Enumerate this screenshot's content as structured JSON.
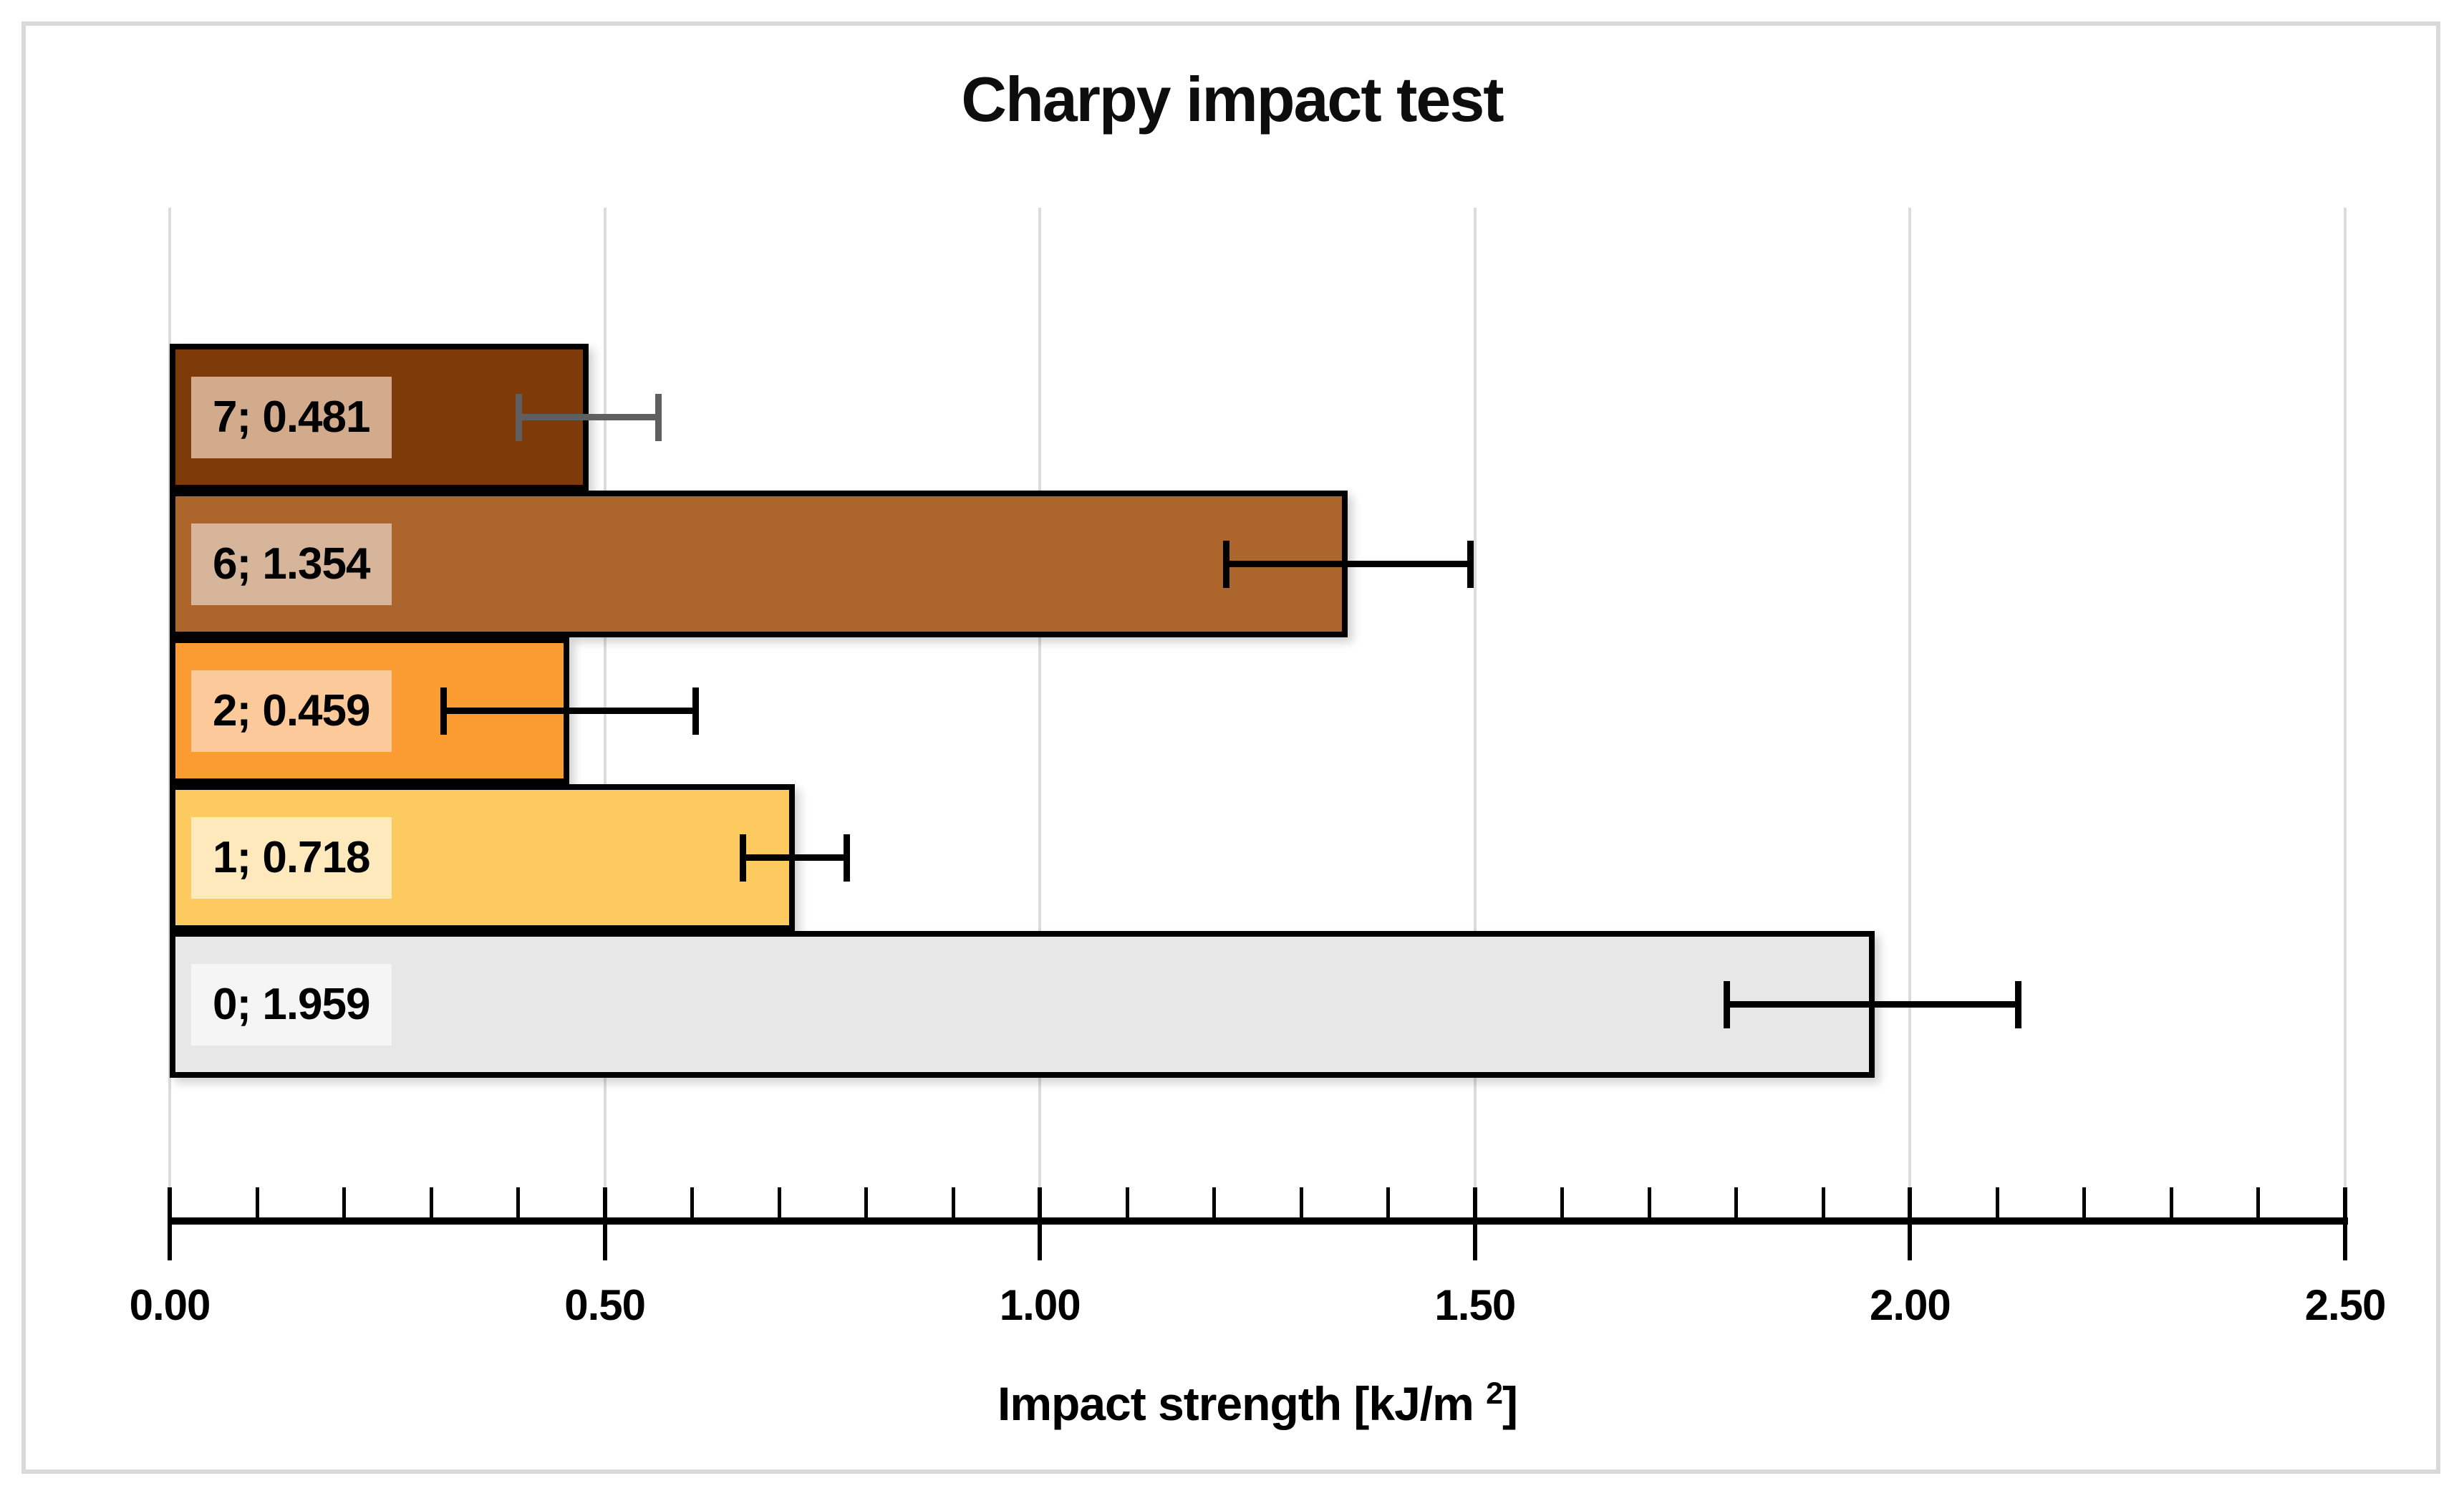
{
  "title": "Charpy impact test",
  "chart_data": {
    "type": "bar",
    "orientation": "horizontal",
    "title": "Charpy impact test",
    "xlabel": "Impact strength [kJ/m ²]",
    "xlabel_parts": {
      "prefix": "Impact strength [kJ/m ",
      "sup": "2",
      "suffix": "]"
    },
    "xlim": [
      0,
      2.5
    ],
    "x_major_ticks": [
      0.0,
      0.5,
      1.0,
      1.5,
      2.0,
      2.5
    ],
    "x_tick_labels": [
      "0.00",
      "0.50",
      "1.00",
      "1.50",
      "2.00",
      "2.50"
    ],
    "x_minor_tick_step": 0.1,
    "grid": "vertical-major-only",
    "legend": "none",
    "categories_top_to_bottom": [
      "7",
      "6",
      "2",
      "1",
      "0"
    ],
    "bars": [
      {
        "category": "7",
        "value": 0.481,
        "label": "7; 0.481",
        "error_minus": 0.08,
        "error_plus": 0.08,
        "fill": "#7E3A08",
        "label_bg": "#D2AA8C",
        "error_color": "#5F5F5F"
      },
      {
        "category": "6",
        "value": 1.354,
        "label": "6; 1.354",
        "error_minus": 0.14,
        "error_plus": 0.14,
        "fill": "#AC662B",
        "label_bg": "#D6B59B",
        "error_color": "#000000"
      },
      {
        "category": "2",
        "value": 0.459,
        "label": "2; 0.459",
        "error_minus": 0.145,
        "error_plus": 0.145,
        "fill": "#FB9C33",
        "label_bg": "#FCCA9A",
        "error_color": "#000000"
      },
      {
        "category": "1",
        "value": 0.718,
        "label": "1; 0.718",
        "error_minus": 0.06,
        "error_plus": 0.06,
        "fill": "#FDCA60",
        "label_bg": "#FEE9BC",
        "error_color": "#000000"
      },
      {
        "category": "0",
        "value": 1.959,
        "label": "0; 1.959",
        "error_minus": 0.17,
        "error_plus": 0.165,
        "fill": "#E8E7E7",
        "label_bg": "#F6F5F5",
        "error_color": "#000000"
      }
    ],
    "colors": {
      "bar_border": "#000000",
      "gridline": "#DCDCDC",
      "axis": "#000000",
      "frame_border": "#D9D9D9",
      "background": "#FFFFFF",
      "text": "#000000"
    }
  }
}
